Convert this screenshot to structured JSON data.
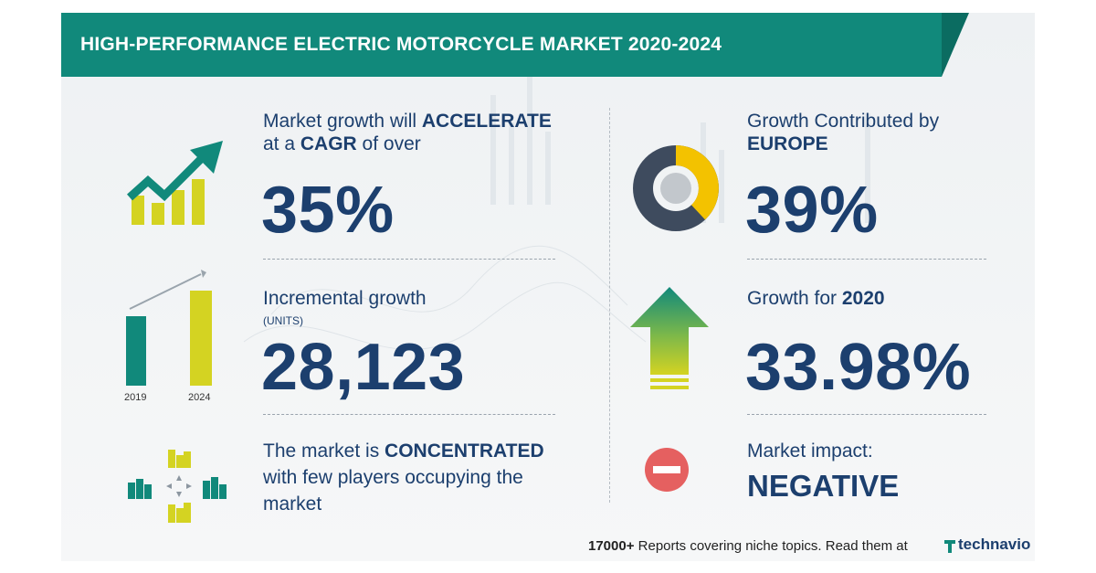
{
  "title": "HIGH-PERFORMANCE ELECTRIC MOTORCYCLE MARKET 2020-2024",
  "panels": {
    "growth": {
      "line1_pre": "Market growth will ",
      "line1_bold": "ACCELERATE",
      "line2_pre": "at a ",
      "line2_bold": "CAGR",
      "line2_post": " of over",
      "value": "35%"
    },
    "incremental": {
      "label": "Incremental growth",
      "unit": "(UNITS)",
      "value": "28,123",
      "bar_year_1": "2019",
      "bar_year_2": "2024"
    },
    "concentration": {
      "line1_pre": "The market is ",
      "line1_bold": "CONCENTRATED",
      "line2": "with few players occupying the",
      "line3": "market"
    },
    "region": {
      "line1": "Growth Contributed by",
      "line2_bold": "EUROPE",
      "value": "39%"
    },
    "yoy": {
      "label_pre": "Growth for ",
      "label_bold": "2020",
      "value": "33.98%"
    },
    "impact": {
      "label": "Market impact:",
      "value": "NEGATIVE"
    }
  },
  "footer": {
    "count": "17000+",
    "text": " Reports covering niche topics. Read them at",
    "brand": "technavio"
  },
  "colors": {
    "teal": "#11897b",
    "navy": "#1c3f6e",
    "yellow": "#d4d322",
    "donut_dark": "#3e4b5e",
    "donut_yellow": "#f3c200",
    "negative_red": "#e56060"
  }
}
